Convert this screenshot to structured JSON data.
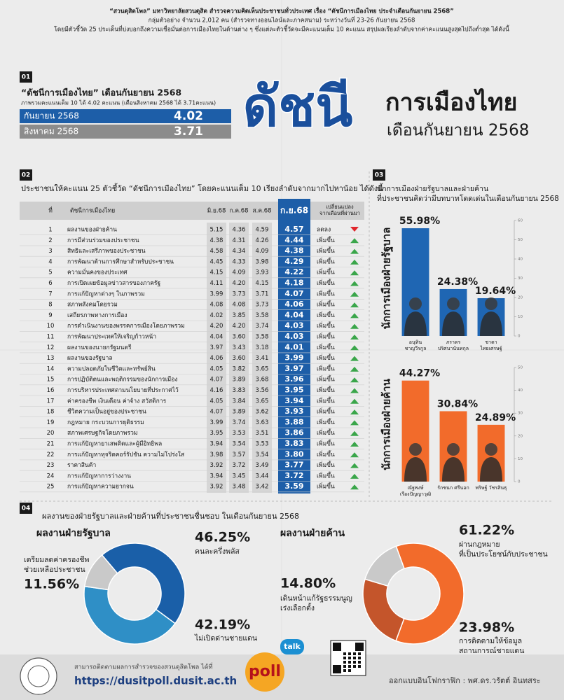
{
  "header": {
    "lines": [
      "“สวนดุสิตโพล” มหาวิทยาลัยสวนดุสิต สำรวจความคิดเห็นประชาชนทั่วประเทศ เรื่อง “ดัชนีการเมืองไทย ประจำเดือนกันยายน 2568”",
      "กลุ่มตัวอย่าง จำนวน 2,012 คน (สำรวจทางออนไลน์และภาคสนาม) ระหว่างวันที่ 23-26 กันยายน 2568",
      "โดยมีตัวชี้วัด 25 ประเด็นที่บ่งบอกถึงความเชื่อมั่นต่อการเมืองไทยในด้านต่าง ๆ ซึ่งแต่ละตัวชี้วัดจะมีคะแนนเต็ม 10 คะแนน สรุปผลเรียงลำดับจากค่าคะแนนสูงสุดไปถึงต่ำสุด ได้ดังนี้"
    ]
  },
  "index": {
    "number": "01",
    "title": "“ดัชนีการเมืองไทย” เดือนกันยายน 2568",
    "subtitle": "ภาพรวมคะแนนเต็ม 10 ได้ 4.02 คะแนน (เดือนสิงหาคม 2568 ได้ 3.71คะแนน)",
    "rows": [
      {
        "label": "กันยายน 2568",
        "value": "4.02"
      },
      {
        "label": "สิงหาคม 2568",
        "value": "3.71"
      }
    ],
    "big_title": "ดัชนี",
    "big_subtitle": "การเมืองไทย",
    "big_month": "เดือนกันยายน 2568"
  },
  "table": {
    "number": "02",
    "title": "ประชาชนให้คะแนน 25 ตัวชี้วัด “ดัชนีการเมืองไทย” โดยคะแนนเต็ม 10 เรียงลำดับจากมากไปหาน้อย ได้ดังนี้",
    "columns": [
      "ที่",
      "ดัชนีการเมืองไทย",
      "มิ.ย.68",
      "ก.ค.68",
      "ส.ค.68",
      "ก.ย.68",
      "เปลี่ยนแปลง\nจากเดือนที่ผ่านมา"
    ],
    "rows": [
      [
        "1",
        "ผลงานของฝ่ายค้าน",
        "5.15",
        "4.36",
        "4.59",
        "4.57",
        "ลดลง"
      ],
      [
        "2",
        "การมีส่วนร่วมของประชาชน",
        "4.38",
        "4.31",
        "4.26",
        "4.44",
        "เพิ่มขึ้น"
      ],
      [
        "3",
        "สิทธิและเสรีภาพของประชาชน",
        "4.58",
        "4.34",
        "4.09",
        "4.38",
        "เพิ่มขึ้น"
      ],
      [
        "4",
        "การพัฒนาด้านการศึกษาสำหรับประชาชน",
        "4.45",
        "4.33",
        "3.98",
        "4.29",
        "เพิ่มขึ้น"
      ],
      [
        "5",
        "ความมั่นคงของประเทศ",
        "4.15",
        "4.09",
        "3.93",
        "4.22",
        "เพิ่มขึ้น"
      ],
      [
        "6",
        "การเปิดเผยข้อมูลข่าวสารของภาครัฐ",
        "4.11",
        "4.20",
        "4.15",
        "4.18",
        "เพิ่มขึ้น"
      ],
      [
        "7",
        "การแก้ปัญหาต่างๆ ในภาพรวม",
        "3.99",
        "3.73",
        "3.71",
        "4.07",
        "เพิ่มขึ้น"
      ],
      [
        "8",
        "สภาพสังคมโดยรวม",
        "4.08",
        "4.08",
        "3.73",
        "4.06",
        "เพิ่มขึ้น"
      ],
      [
        "9",
        "เสถียรภาพทางการเมือง",
        "4.02",
        "3.85",
        "3.58",
        "4.04",
        "เพิ่มขึ้น"
      ],
      [
        "10",
        "การดำเนินงานของพรรคการเมืองโดยภาพรวม",
        "4.20",
        "4.20",
        "3.74",
        "4.03",
        "เพิ่มขึ้น"
      ],
      [
        "11",
        "การพัฒนาประเทศให้เจริญก้าวหน้า",
        "4.04",
        "3.60",
        "3.58",
        "4.03",
        "เพิ่มขึ้น"
      ],
      [
        "12",
        "ผลงานของนายกรัฐมนตรี",
        "3.97",
        "3.43",
        "3.18",
        "4.01",
        "เพิ่มขึ้น"
      ],
      [
        "13",
        "ผลงานของรัฐบาล",
        "4.06",
        "3.60",
        "3.41",
        "3.99",
        "เพิ่มขึ้น"
      ],
      [
        "14",
        "ความปลอดภัยในชีวิตและทรัพย์สิน",
        "4.05",
        "3.82",
        "3.65",
        "3.97",
        "เพิ่มขึ้น"
      ],
      [
        "15",
        "การปฏิบัติตนและพฤติกรรมของนักการเมือง",
        "4.07",
        "3.89",
        "3.68",
        "3.96",
        "เพิ่มขึ้น"
      ],
      [
        "16",
        "การบริหารประเทศตามนโยบายที่ประกาศไว้",
        "4.16",
        "3.83",
        "3.56",
        "3.95",
        "เพิ่มขึ้น"
      ],
      [
        "17",
        "ค่าครองชีพ เงินเดือน ค่าจ้าง สวัสดิการ",
        "4.05",
        "3.84",
        "3.65",
        "3.94",
        "เพิ่มขึ้น"
      ],
      [
        "18",
        "ชีวิตความเป็นอยู่ของประชาชน",
        "4.07",
        "3.89",
        "3.62",
        "3.93",
        "เพิ่มขึ้น"
      ],
      [
        "19",
        "กฎหมาย กระบวนการยุติธรรม",
        "3.99",
        "3.74",
        "3.63",
        "3.88",
        "เพิ่มขึ้น"
      ],
      [
        "20",
        "สภาพเศรษฐกิจโดยภาพรวม",
        "3.95",
        "3.53",
        "3.51",
        "3.86",
        "เพิ่มขึ้น"
      ],
      [
        "21",
        "การแก้ปัญหายาเสพติดและผู้มีอิทธิพล",
        "3.94",
        "3.54",
        "3.53",
        "3.83",
        "เพิ่มขึ้น"
      ],
      [
        "22",
        "การแก้ปัญหาทุจริตคอร์รัปชัน ความไม่โปร่งใส",
        "3.98",
        "3.57",
        "3.54",
        "3.80",
        "เพิ่มขึ้น"
      ],
      [
        "23",
        "ราคาสินค้า",
        "3.92",
        "3.72",
        "3.49",
        "3.77",
        "เพิ่มขึ้น"
      ],
      [
        "24",
        "การแก้ปัญหาการว่างงาน",
        "3.94",
        "3.45",
        "3.44",
        "3.72",
        "เพิ่มขึ้น"
      ],
      [
        "25",
        "การแก้ปัญหาความยากจน",
        "3.92",
        "3.48",
        "3.42",
        "3.59",
        "เพิ่มขึ้น"
      ]
    ]
  },
  "politicians": {
    "number": "03",
    "title": "นักการเมืองฝ่ายรัฐบาลและฝ่ายค้าน\nที่ประชาชนคิดว่ามีบทบาทโดดเด่นในเดือนกันยายน 2568"
  },
  "works": {
    "number": "04",
    "title": "ผลงานของฝ่ายรัฐบาลและฝ่ายค้านที่ประชาชนชื่นชอบ ในเดือนกันยายน 2568"
  },
  "chart_data": [
    {
      "type": "bar",
      "title": "นักการเมืองฝ่ายรัฐบาล",
      "categories": [
        "อนุทิน\nชาญวีรกูล",
        "ภราดร\nปริศนานันทกุล",
        "ชาดา\nไทยเศรษฐ์"
      ],
      "values": [
        55.98,
        24.38,
        19.64
      ],
      "value_labels": [
        "55.98%",
        "24.38%",
        "19.64%"
      ],
      "color": "#1f66b3",
      "ylim": [
        0,
        60
      ],
      "yticks": [
        0,
        10,
        20,
        30,
        40,
        50,
        60
      ]
    },
    {
      "type": "bar",
      "title": "นักการเมืองฝ่ายค้าน",
      "categories": [
        "ณัฐพงษ์\nเรืองปัญญาวุฒิ",
        "รักชนก ศรีนอก",
        "พริษฐ์ วัชรสินธุ"
      ],
      "values": [
        44.27,
        30.84,
        24.89
      ],
      "value_labels": [
        "44.27%",
        "30.84%",
        "24.89%"
      ],
      "color": "#f26b2b",
      "ylim": [
        0,
        50
      ],
      "yticks": [
        0,
        10,
        20,
        30,
        40,
        50
      ]
    },
    {
      "type": "pie",
      "title": "ผลงานฝ่ายรัฐบาล",
      "categories": [
        "คนละครึ่งพลัส",
        "ไม่เปิดด่านชายแดน",
        "เตรียมลดค่าครองชีพ\nช่วยเหลือประชาชน"
      ],
      "values": [
        46.25,
        42.19,
        11.56
      ],
      "value_labels": [
        "46.25%",
        "42.19%",
        "11.56%"
      ],
      "colors": [
        "#1a5fa8",
        "#2f8fc6",
        "#c9c9c9"
      ]
    },
    {
      "type": "pie",
      "title": "ผลงานฝ่ายค้าน",
      "categories": [
        "ผ่านกฎหมาย\nที่เป็นประโยชน์กับประชาชน",
        "การติดตามให้ข้อมูล\nสถานการณ์ชายแดน",
        "เดินหน้าแก้รัฐธรรมนูญ\nเร่งเลือกตั้ง"
      ],
      "values": [
        61.22,
        23.98,
        14.8
      ],
      "value_labels": [
        "61.22%",
        "23.98%",
        "14.80%"
      ],
      "colors": [
        "#f26b2b",
        "#c4552b",
        "#c9c9c9"
      ]
    }
  ],
  "footer": {
    "follow": "สามารถติดตามผลการสำรวจของสวนดุสิตโพล ได้ที่",
    "url": "https://dusitpoll.dusit.ac.th",
    "logo_top": "talk",
    "logo": "poll",
    "designer": "ออกแบบอินโฟกราฟิก : พศ.ดร.วรัตต์ อินทสระ"
  }
}
